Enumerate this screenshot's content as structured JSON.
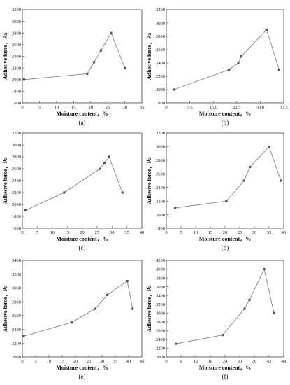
{
  "chart_data": [
    {
      "panel": "(a)",
      "type": "line",
      "xlabel": "Moisture content，%",
      "ylabel": "Adhesive force，Pa",
      "xlim": [
        0,
        35
      ],
      "xticks": [
        0,
        5,
        10,
        15,
        20,
        25,
        30,
        35
      ],
      "ylim": [
        1600,
        3200
      ],
      "yticks": [
        1600,
        1800,
        2000,
        2200,
        2400,
        2600,
        2800,
        3000,
        3200
      ],
      "x": [
        0.5,
        19,
        21,
        23,
        26,
        30
      ],
      "y": [
        2000,
        2100,
        2300,
        2500,
        2800,
        2200
      ]
    },
    {
      "panel": "(b)",
      "type": "line",
      "xlabel": "Moisture content，%",
      "ylabel": "Adhesive force，Pa",
      "xlim": [
        0,
        37.5
      ],
      "xticks": [
        0,
        7.5,
        15,
        22.5,
        30,
        37.5
      ],
      "xticklabels": [
        "0",
        "7.5",
        "15.0",
        "22.5",
        "30.0",
        "37.5"
      ],
      "ylim": [
        1800,
        3200
      ],
      "yticks": [
        1800,
        2000,
        2200,
        2400,
        2600,
        2800,
        3000,
        3200
      ],
      "x": [
        2.5,
        20,
        23,
        24,
        32,
        36
      ],
      "y": [
        2000,
        2300,
        2400,
        2500,
        2900,
        2300
      ]
    },
    {
      "panel": "(c)",
      "type": "line",
      "xlabel": "Moisture content，%",
      "ylabel": "Adhesive force，Pa",
      "xlim": [
        0,
        40
      ],
      "xticks": [
        0,
        5,
        10,
        15,
        20,
        25,
        30,
        35,
        40
      ],
      "ylim": [
        1600,
        3200
      ],
      "yticks": [
        1600,
        1800,
        2000,
        2200,
        2400,
        2600,
        2800,
        3000,
        3200
      ],
      "x": [
        1,
        14,
        26,
        27.5,
        29,
        33.5
      ],
      "y": [
        1900,
        2200,
        2600,
        2700,
        2800,
        2200
      ]
    },
    {
      "panel": "(d)",
      "type": "line",
      "xlabel": "Moisture content，%",
      "ylabel": "Adhesive force，Pa",
      "xlim": [
        0,
        40
      ],
      "xticks": [
        0,
        5,
        10,
        15,
        20,
        25,
        30,
        35,
        40
      ],
      "ylim": [
        1800,
        3200
      ],
      "yticks": [
        1800,
        2000,
        2200,
        2400,
        2600,
        2800,
        3000,
        3200
      ],
      "x": [
        3,
        20.5,
        26.5,
        28.5,
        35,
        39
      ],
      "y": [
        2100,
        2200,
        2500,
        2700,
        3000,
        2500
      ]
    },
    {
      "panel": "(e)",
      "type": "line",
      "xlabel": "Moisture content，%",
      "ylabel": "Adhesive force，Pa",
      "xlim": [
        0,
        45
      ],
      "xticks": [
        0,
        5,
        10,
        15,
        20,
        25,
        30,
        35,
        40,
        45
      ],
      "ylim": [
        2000,
        3400
      ],
      "yticks": [
        2000,
        2200,
        2400,
        2600,
        2800,
        3000,
        3200,
        3400
      ],
      "x": [
        0.5,
        18.5,
        27.5,
        32,
        39.5,
        41.5
      ],
      "y": [
        2300,
        2500,
        2700,
        2900,
        3100,
        2700
      ]
    },
    {
      "panel": "(f)",
      "type": "line",
      "xlabel": "Moisture content，%",
      "ylabel": "Adhesive force，Pa",
      "xlim": [
        0,
        48
      ],
      "xticks": [
        0,
        6,
        12,
        18,
        24,
        30,
        36,
        42,
        48
      ],
      "ylim": [
        2000,
        4200
      ],
      "yticks": [
        2000,
        2200,
        2400,
        2600,
        2800,
        3000,
        3200,
        3400,
        3600,
        3800,
        4000,
        4200
      ],
      "x": [
        4,
        23,
        32,
        34,
        40,
        44
      ],
      "y": [
        2300,
        2500,
        3100,
        3300,
        4000,
        3000
      ]
    }
  ]
}
